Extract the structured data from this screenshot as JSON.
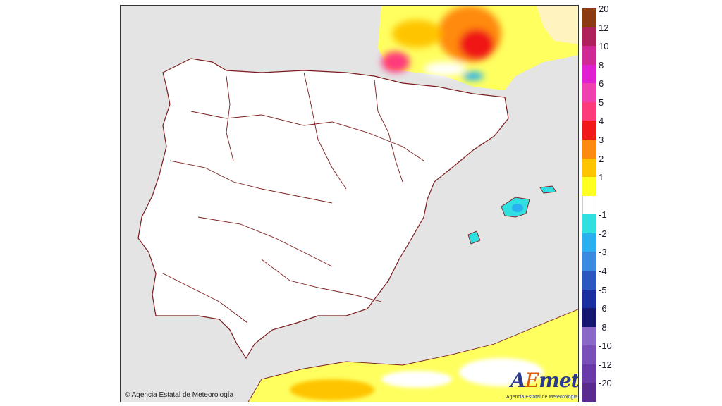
{
  "map": {
    "copyright": "© Agencia Estatal de Meteorología",
    "logo": {
      "prefix": "A",
      "accent": "E",
      "suffix": "met",
      "subtitle": "Agencia Estatal de Meteorología"
    },
    "colors": {
      "sea": "#e4e4e4",
      "border": "#7a1c1c"
    }
  },
  "legend": {
    "items": [
      {
        "label": "20",
        "color": "#8b3a12"
      },
      {
        "label": "12",
        "color": "#b0205a"
      },
      {
        "label": "10",
        "color": "#d02894"
      },
      {
        "label": "8",
        "color": "#e020d0"
      },
      {
        "label": "6",
        "color": "#f040b0"
      },
      {
        "label": "5",
        "color": "#ff3a7a"
      },
      {
        "label": "4",
        "color": "#f01818"
      },
      {
        "label": "3",
        "color": "#ff8a10"
      },
      {
        "label": "2",
        "color": "#ffc400"
      },
      {
        "label": "1",
        "color": "#ffff20"
      },
      {
        "label": "",
        "color": "#ffffff"
      },
      {
        "label": "-1",
        "color": "#30e0e0"
      },
      {
        "label": "-2",
        "color": "#28b0f0"
      },
      {
        "label": "-3",
        "color": "#3a8ae0"
      },
      {
        "label": "-4",
        "color": "#2a58c0"
      },
      {
        "label": "-5",
        "color": "#1a30a0"
      },
      {
        "label": "-6",
        "color": "#141870"
      },
      {
        "label": "-8",
        "color": "#8a68c8"
      },
      {
        "label": "-10",
        "color": "#7a50b8"
      },
      {
        "label": "-12",
        "color": "#6a3aa8"
      },
      {
        "label": "-20",
        "color": "#5a2a90"
      }
    ]
  }
}
